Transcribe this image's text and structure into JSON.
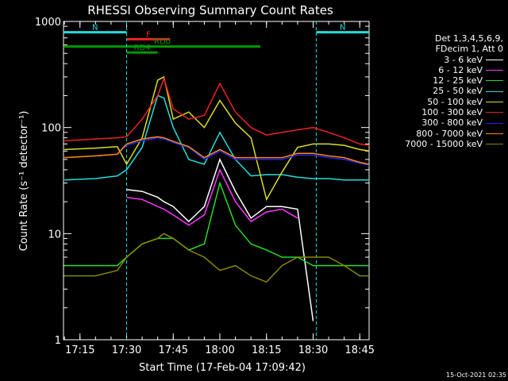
{
  "chart_data": {
    "type": "line",
    "title": "RHESSI Observing Summary Count Rates",
    "xlabel": "Start Time (17-Feb-04 17:09:42)",
    "ylabel": "Count Rate (s⁻¹ detector⁻¹)",
    "x_unit": "UT (HH:MM)",
    "xlim": [
      "17:09:42",
      "18:48:00"
    ],
    "ylim": [
      1,
      1000
    ],
    "yscale": "log",
    "x_ticks": [
      "17:15",
      "17:30",
      "17:45",
      "18:00",
      "18:15",
      "18:30",
      "18:45"
    ],
    "y_ticks": [
      "1",
      "10",
      "100",
      "1000"
    ],
    "legend_header": [
      "Det 1,3,4,5,6,9,",
      "FDecim 1, Att 0"
    ],
    "x": [
      "17:10",
      "17:20",
      "17:27",
      "17:30",
      "17:35",
      "17:40",
      "17:42",
      "17:45",
      "17:50",
      "17:55",
      "18:00",
      "18:05",
      "18:10",
      "18:15",
      "18:20",
      "18:25",
      "18:30",
      "18:35",
      "18:40",
      "18:45",
      "18:48"
    ],
    "series": [
      {
        "name": "3 - 6 keV",
        "color": "#ffffff",
        "values": [
          null,
          null,
          null,
          26,
          25,
          22,
          20,
          18,
          13,
          18,
          50,
          25,
          14,
          18,
          18,
          17,
          1.5,
          null,
          null,
          null,
          null
        ]
      },
      {
        "name": "6 - 12 keV",
        "color": "#ff33ff",
        "values": [
          null,
          null,
          null,
          22,
          21,
          18,
          17,
          15,
          12,
          15,
          40,
          20,
          13,
          16,
          17,
          14,
          null,
          null,
          null,
          null,
          null
        ]
      },
      {
        "name": "12 - 25 keV",
        "color": "#22dd22",
        "values": [
          5,
          5,
          5,
          6,
          8,
          9,
          9,
          9,
          7,
          8,
          30,
          12,
          8,
          7,
          6,
          6,
          5,
          5,
          5,
          5,
          5
        ]
      },
      {
        "name": "25 - 50 keV",
        "color": "#22dddd",
        "values": [
          32,
          33,
          35,
          40,
          65,
          200,
          190,
          100,
          50,
          45,
          90,
          50,
          35,
          36,
          36,
          34,
          33,
          33,
          32,
          32,
          32
        ]
      },
      {
        "name": "50 - 100 keV",
        "color": "#dddd22",
        "values": [
          62,
          64,
          66,
          45,
          80,
          280,
          300,
          120,
          140,
          100,
          180,
          110,
          80,
          21,
          38,
          65,
          70,
          70,
          68,
          62,
          60
        ]
      },
      {
        "name": "100 - 300 keV",
        "color": "#ee2222",
        "values": [
          75,
          78,
          80,
          82,
          120,
          200,
          290,
          150,
          120,
          130,
          260,
          140,
          100,
          85,
          90,
          95,
          100,
          90,
          80,
          70,
          68
        ]
      },
      {
        "name": "300 - 800 keV",
        "color": "#2222ee",
        "values": [
          52,
          54,
          56,
          68,
          75,
          80,
          78,
          72,
          65,
          50,
          60,
          50,
          50,
          50,
          50,
          55,
          55,
          52,
          50,
          46,
          44
        ]
      },
      {
        "name": "800 - 7000 keV",
        "color": "#ff8800",
        "values": [
          52,
          54,
          56,
          70,
          78,
          82,
          80,
          74,
          66,
          52,
          62,
          52,
          52,
          52,
          52,
          57,
          57,
          54,
          52,
          47,
          45
        ]
      },
      {
        "name": "7000 - 15000 keV",
        "color": "#888800",
        "values": [
          4,
          4,
          4.5,
          6,
          8,
          9,
          10,
          9,
          7,
          6,
          4.5,
          5,
          4,
          3.5,
          5,
          6,
          6,
          6,
          5,
          4,
          4
        ]
      }
    ],
    "annotations": [
      {
        "text": "N",
        "color": "#22dddd",
        "x_range": [
          "17:09:42",
          "17:30"
        ],
        "y": 790
      },
      {
        "text": "N",
        "color": "#22dddd",
        "x_range": [
          "18:31",
          "18:48"
        ],
        "y": 790
      },
      {
        "text": "F",
        "color": "#ee2222",
        "x_range": [
          "17:30",
          "17:44"
        ],
        "y": 680
      },
      {
        "text": "RD0",
        "color": "#009900",
        "x_range": [
          "17:10",
          "18:13"
        ],
        "y": 580
      },
      {
        "text": "RD4",
        "color": "#009900",
        "x_range": [
          "17:30",
          "17:40"
        ],
        "y": 510
      }
    ],
    "grid": false,
    "legend_position": "right"
  },
  "timestamp": "15-Oct-2021 02:35"
}
